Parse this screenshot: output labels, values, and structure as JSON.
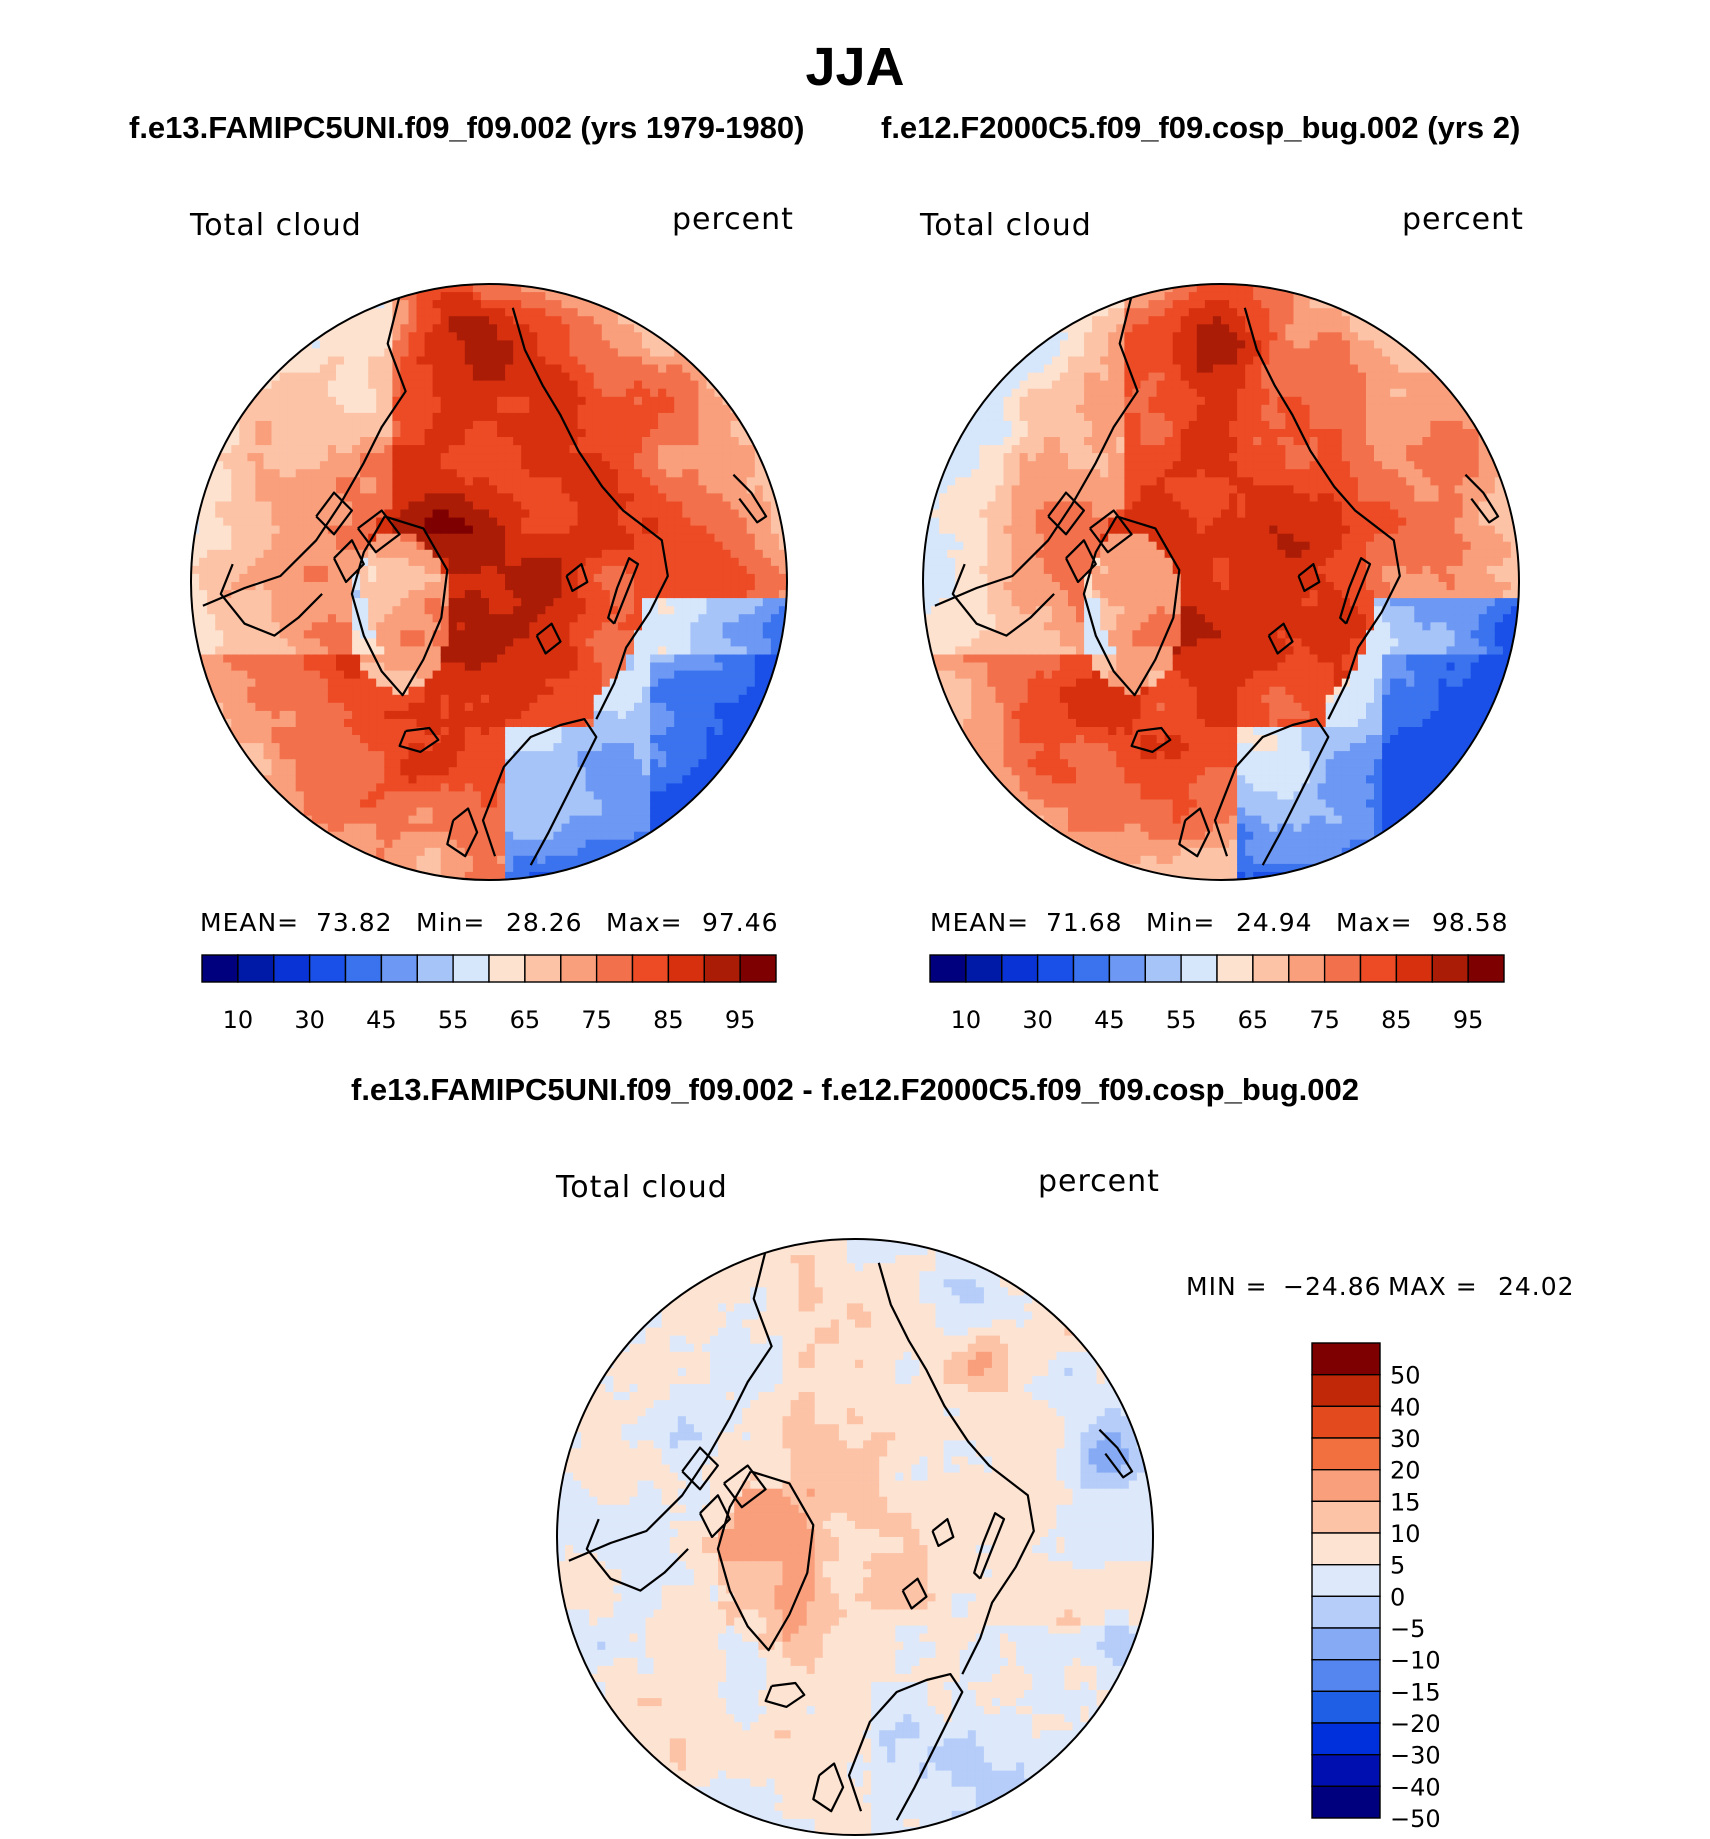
{
  "colors": {
    "abs": [
      "#00007f",
      "#001aa8",
      "#0a33d6",
      "#1a50e8",
      "#3b73ef",
      "#6d98f3",
      "#a7c4f8",
      "#d6e6fb",
      "#fde2cf",
      "#fcc3a7",
      "#f99f7c",
      "#f2704c",
      "#ec4b25",
      "#d7300f",
      "#aa1c06",
      "#7f0000"
    ],
    "diff": [
      "#00007f",
      "#0010b0",
      "#0030dc",
      "#1f5fe6",
      "#5585ef",
      "#86abf4",
      "#b5cdf8",
      "#dde9fb",
      "#fde3d2",
      "#fcc3a7",
      "#f99f7c",
      "#f27040",
      "#e34a1d",
      "#c02808",
      "#7f0000"
    ],
    "land_outline": "#000000"
  },
  "header": {
    "season": "JJA",
    "case_a": "f.e13.FAMIPC5UNI.f09_f09.002 (yrs 1979-1980)",
    "case_b": "f.e12.F2000C5.f09_f09.cosp_bug.002 (yrs 2)",
    "diff_title": "f.e13.FAMIPC5UNI.f09_f09.002 - f.e12.F2000C5.f09_f09.cosp_bug.002"
  },
  "chart_data": [
    {
      "type": "heatmap",
      "projection": "north-polar-stereographic",
      "variable": "Total cloud",
      "units": "percent",
      "stats": {
        "mean": "73.82",
        "min": "28.26",
        "max": "97.46"
      },
      "stat_labels": {
        "mean": "MEAN=",
        "min": "Min=",
        "max": "Max="
      },
      "contour_levels": [
        10,
        20,
        30,
        40,
        45,
        50,
        55,
        60,
        65,
        70,
        75,
        80,
        85,
        90,
        95
      ],
      "colorbar_tick_labels": [
        "10",
        "30",
        "45",
        "55",
        "65",
        "75",
        "85",
        "95"
      ],
      "colorbar_orientation": "horizontal"
    },
    {
      "type": "heatmap",
      "projection": "north-polar-stereographic",
      "variable": "Total cloud",
      "units": "percent",
      "stats": {
        "mean": "71.68",
        "min": "24.94",
        "max": "98.58"
      },
      "stat_labels": {
        "mean": "MEAN=",
        "min": "Min=",
        "max": "Max="
      },
      "contour_levels": [
        10,
        20,
        30,
        40,
        45,
        50,
        55,
        60,
        65,
        70,
        75,
        80,
        85,
        90,
        95
      ],
      "colorbar_tick_labels": [
        "10",
        "30",
        "45",
        "55",
        "65",
        "75",
        "85",
        "95"
      ],
      "colorbar_orientation": "horizontal"
    },
    {
      "type": "heatmap",
      "projection": "north-polar-stereographic",
      "variable": "Total cloud",
      "units": "percent",
      "stats": {
        "min": "−24.86",
        "max": "24.02"
      },
      "stat_labels": {
        "min": "MIN =",
        "max": "MAX ="
      },
      "contour_levels": [
        -50,
        -40,
        -30,
        -20,
        -15,
        -10,
        -5,
        0,
        5,
        10,
        15,
        20,
        30,
        40,
        50
      ],
      "colorbar_tick_labels": [
        "50",
        "40",
        "30",
        "20",
        "15",
        "10",
        "5",
        "0",
        "−5",
        "−10",
        "−15",
        "−20",
        "−30",
        "−40",
        "−50"
      ],
      "colorbar_orientation": "vertical"
    }
  ]
}
